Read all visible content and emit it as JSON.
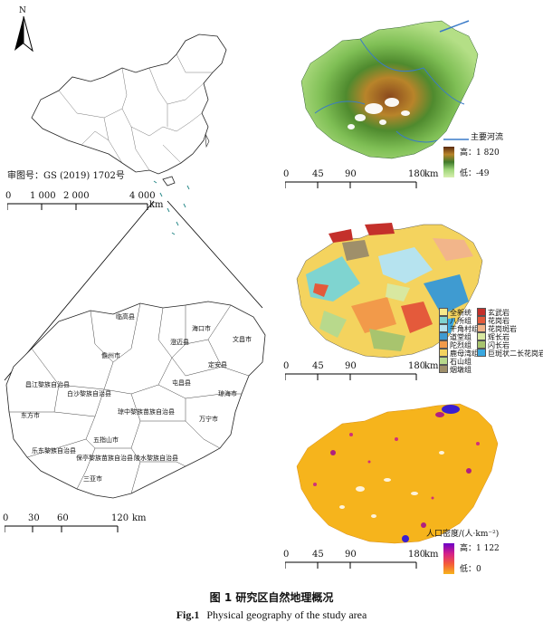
{
  "north_arrow": {
    "label": "N"
  },
  "china_panel": {
    "approval_number": "审图号：GS (2019) 1702号",
    "scale": {
      "ticks": [
        "0",
        "1 000",
        "2 000",
        "4 000"
      ],
      "unit": "km"
    }
  },
  "hainan_counties_panel": {
    "counties": [
      "临高县",
      "澄迈县",
      "海口市",
      "文昌市",
      "儋州市",
      "定安县",
      "昌江黎族自治县",
      "白沙黎族自治县",
      "屯昌县",
      "琼海市",
      "东方市",
      "琼中黎族苗族自治县",
      "万宁市",
      "五指山市",
      "乐东黎族自治县",
      "保亭黎族苗族自治县",
      "陵水黎族自治县",
      "三亚市"
    ],
    "scale": {
      "ticks": [
        "0",
        "30",
        "60",
        "120"
      ],
      "unit": "km"
    }
  },
  "elevation_panel": {
    "river_legend": "主要河流",
    "high_label": "高：1 820",
    "low_label": "低：-49",
    "scale": {
      "ticks": [
        "0",
        "45",
        "90",
        "180"
      ],
      "unit": "km"
    }
  },
  "geology_panel": {
    "legend_left": [
      "全新统",
      "八所组",
      "干角村组",
      "道堂组",
      "陀烈组",
      "鹿母湾组",
      "石山组",
      "烟墩组"
    ],
    "legend_right": [
      "玄武岩",
      "花岗岩",
      "花岗斑岩",
      "辉长岩",
      "闪长岩",
      "巨斑状二长花岗岩"
    ],
    "colors_left": [
      "#f7e98a",
      "#7fd4d0",
      "#b6e3ef",
      "#3f9bd1",
      "#f29a4a",
      "#f4d35e",
      "#b8d98c",
      "#9f8f6a"
    ],
    "colors_right": [
      "#c4302b",
      "#e45a3b",
      "#f2b58a",
      "#d8e8a0",
      "#a8c46e",
      "#3aa8e0"
    ],
    "scale": {
      "ticks": [
        "0",
        "45",
        "90",
        "180"
      ],
      "unit": "km"
    }
  },
  "population_panel": {
    "legend_title": "人口密度/(人·km⁻²)",
    "high_label": "高：1 122",
    "low_label": "低：0",
    "scale": {
      "ticks": [
        "0",
        "45",
        "90",
        "180"
      ],
      "unit": "km"
    }
  },
  "caption": {
    "cn": "图 1   研究区自然地理概况",
    "en_label": "Fig.1",
    "en_text": "Physical geography of the study area"
  }
}
